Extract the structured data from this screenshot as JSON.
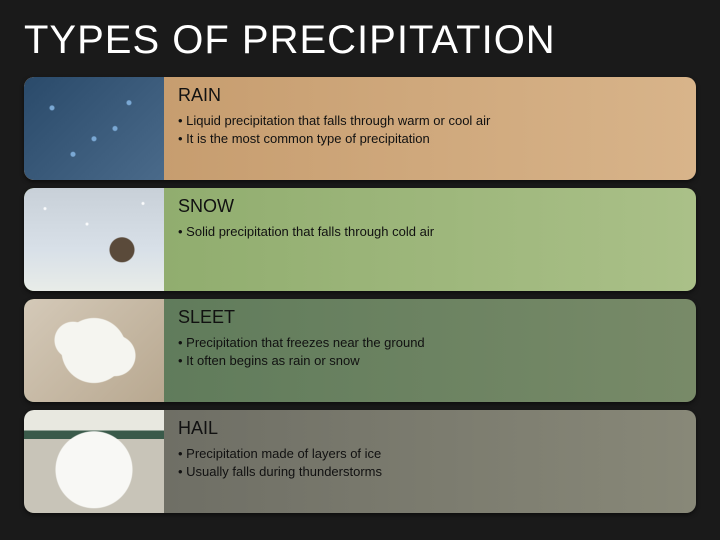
{
  "slide": {
    "title": "TYPES OF PRECIPITATION",
    "background_color": "#1a1a1a",
    "title_color": "#ffffff",
    "title_fontsize": 40
  },
  "cards": [
    {
      "title": "RAIN",
      "bullets": [
        "Liquid precipitation that falls through warm or cool air",
        "It is the most common type of precipitation"
      ],
      "gradient_from": "#c29768",
      "gradient_to": "#d8b48a",
      "thumb": "rain"
    },
    {
      "title": "SNOW",
      "bullets": [
        "Solid precipitation that falls through cold air"
      ],
      "gradient_from": "#8aa868",
      "gradient_to": "#aac088",
      "thumb": "snow"
    },
    {
      "title": "SLEET",
      "bullets": [
        "Precipitation that freezes near the ground",
        "It often begins as rain or snow"
      ],
      "gradient_from": "#5a7858",
      "gradient_to": "#788a68",
      "thumb": "sleet"
    },
    {
      "title": "HAIL",
      "bullets": [
        "Precipitation made of layers of ice",
        "Usually falls during thunderstorms"
      ],
      "gradient_from": "#686860",
      "gradient_to": "#888878",
      "thumb": "hail"
    }
  ]
}
